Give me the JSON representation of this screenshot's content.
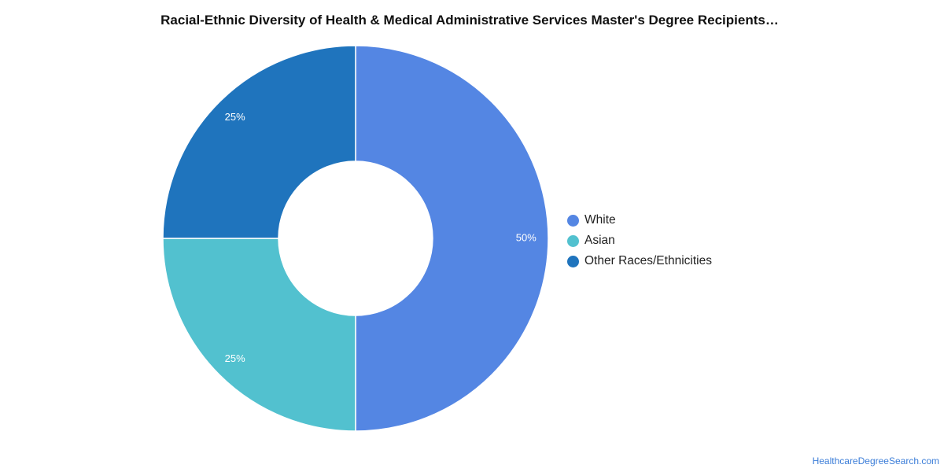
{
  "chart_data": {
    "type": "pie",
    "title": "Racial-Ethnic Diversity of Health & Medical Administrative Services Master's Degree Recipients…",
    "donut": true,
    "legend_position": "right",
    "slices": [
      {
        "label": "White",
        "value": 50,
        "data_label": "50%",
        "color": "#5486e3"
      },
      {
        "label": "Asian",
        "value": 25,
        "data_label": "25%",
        "color": "#52c1cf"
      },
      {
        "label": "Other Races/Ethnicities",
        "value": 25,
        "data_label": "25%",
        "color": "#1f74bd"
      }
    ]
  },
  "footer": {
    "source_text": "HealthcareDegreeSearch.com"
  }
}
